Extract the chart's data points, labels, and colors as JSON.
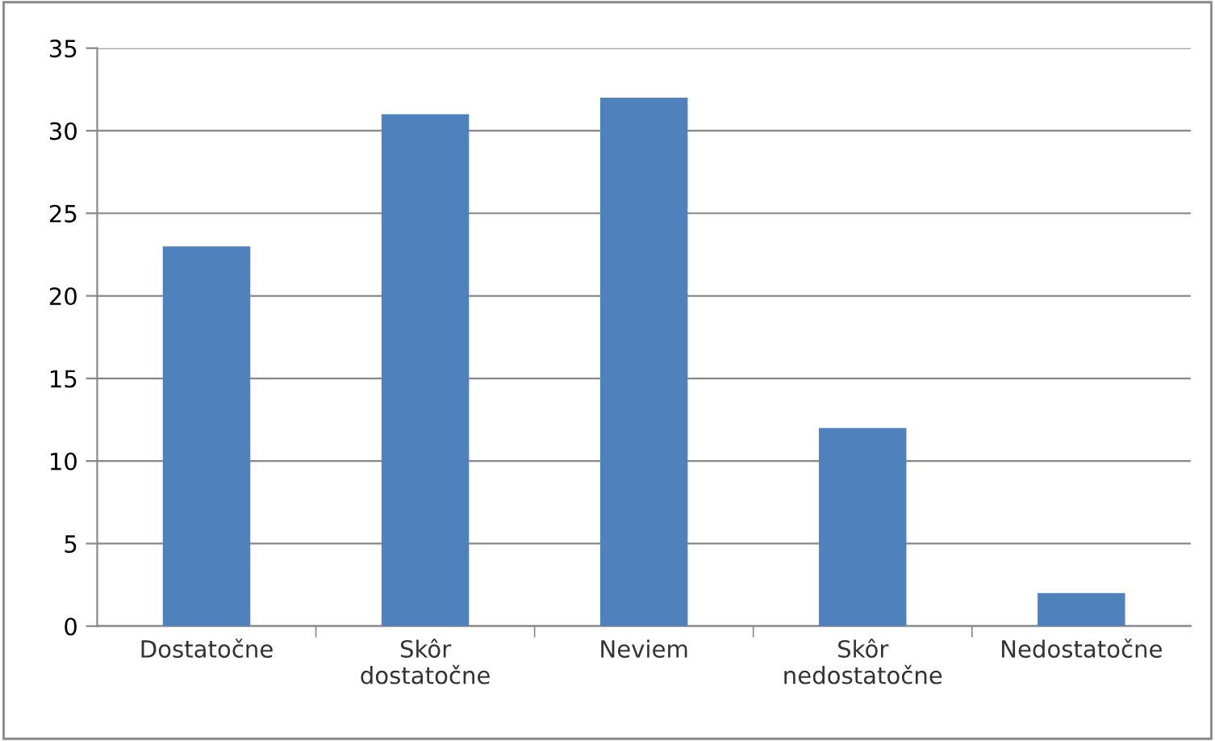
{
  "chart_data": {
    "type": "bar",
    "categories": [
      "Dostatočne",
      "Skôr\ndostatočne",
      "Neviem",
      "Skôr\nnedostatočne",
      "Nedostatočne"
    ],
    "values": [
      23,
      31,
      32,
      12,
      2
    ],
    "color": "#4f81bd",
    "ylim": [
      0,
      35
    ],
    "yticks": [
      0,
      5,
      10,
      15,
      20,
      25,
      30,
      35
    ],
    "grid": "y",
    "legend": false
  }
}
